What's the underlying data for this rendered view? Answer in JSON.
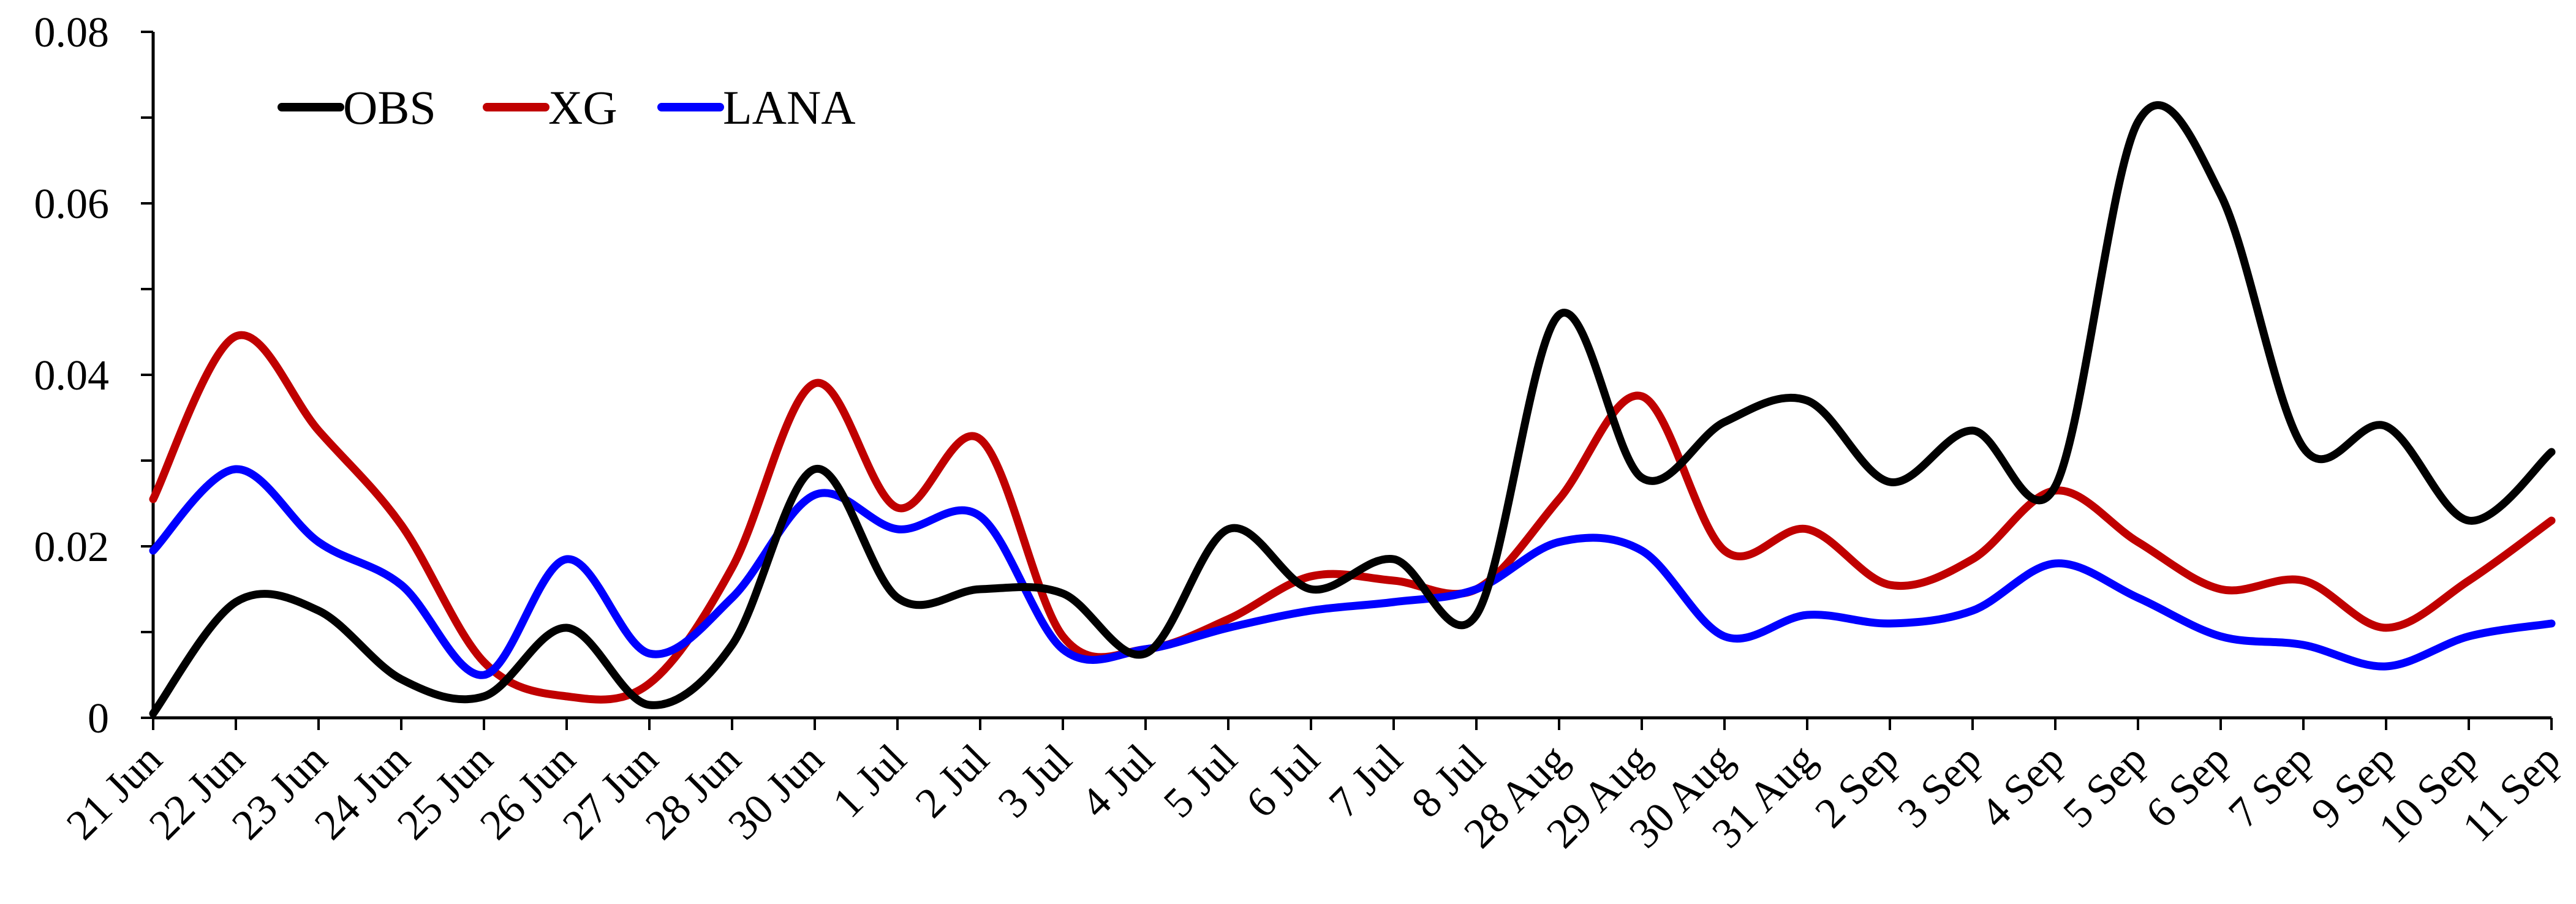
{
  "chart_data": {
    "type": "line",
    "title": "",
    "xlabel": "",
    "ylabel": "",
    "categories": [
      "21 Jun",
      "22 Jun",
      "23 Jun",
      "24 Jun",
      "25 Jun",
      "26 Jun",
      "27 Jun",
      "28 Jun",
      "30 Jun",
      "1 Jul",
      "2 Jul",
      "3 Jul",
      "4 Jul",
      "5 Jul",
      "6 Jul",
      "7 Jul",
      "8 Jul",
      "28 Aug",
      "29 Aug",
      "30 Aug",
      "31 Aug",
      "2 Sep",
      "3 Sep",
      "4 Sep",
      "5 Sep",
      "6 Sep",
      "7 Sep",
      "9 Sep",
      "10 Sep",
      "11 Sep"
    ],
    "ylim": [
      0,
      0.08
    ],
    "yticks": [
      0,
      0.02,
      0.04,
      0.06,
      0.08
    ],
    "ytick_labels": [
      "0",
      "0.02",
      "0.04",
      "0.06",
      "0.08"
    ],
    "grid": false,
    "legend_position": "top-left",
    "series": [
      {
        "name": "OBS",
        "color": "#000000",
        "values": [
          0.0005,
          0.0135,
          0.0125,
          0.0045,
          0.0025,
          0.0105,
          0.0015,
          0.0085,
          0.029,
          0.014,
          0.015,
          0.0145,
          0.0075,
          0.022,
          0.015,
          0.0185,
          0.012,
          0.047,
          0.028,
          0.0345,
          0.037,
          0.0275,
          0.0335,
          0.027,
          0.0695,
          0.061,
          0.0315,
          0.034,
          0.023,
          0.031
        ]
      },
      {
        "name": "XG",
        "color": "#c00000",
        "values": [
          0.0255,
          0.0445,
          0.0335,
          0.0225,
          0.0065,
          0.0025,
          0.004,
          0.0175,
          0.039,
          0.0245,
          0.0325,
          0.0095,
          0.008,
          0.0115,
          0.0165,
          0.016,
          0.015,
          0.0255,
          0.0375,
          0.0195,
          0.022,
          0.0155,
          0.0185,
          0.0265,
          0.0205,
          0.015,
          0.016,
          0.0105,
          0.016,
          0.023
        ]
      },
      {
        "name": "LANA",
        "color": "#0000ff",
        "values": [
          0.0195,
          0.029,
          0.0205,
          0.0155,
          0.005,
          0.0185,
          0.0075,
          0.014,
          0.026,
          0.022,
          0.0235,
          0.008,
          0.008,
          0.0105,
          0.0125,
          0.0135,
          0.015,
          0.0205,
          0.0195,
          0.0095,
          0.012,
          0.011,
          0.0125,
          0.018,
          0.014,
          0.0095,
          0.0085,
          0.006,
          0.0095,
          0.011
        ]
      }
    ]
  }
}
